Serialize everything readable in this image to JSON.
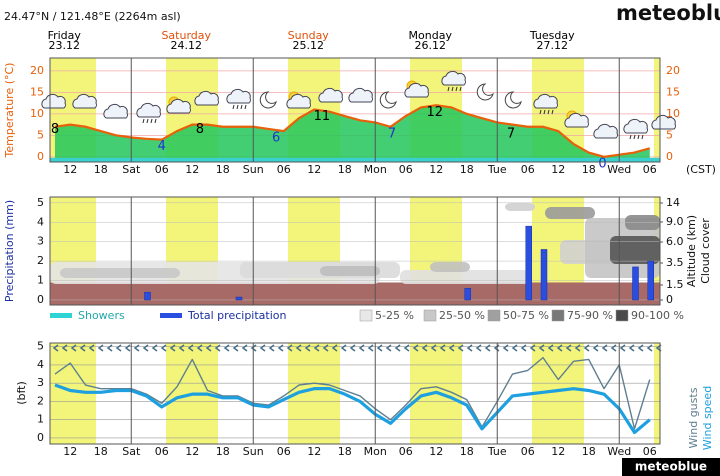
{
  "header": {
    "coords": "24.47°N / 121.48°E (2264m asl)",
    "brand": "meteoblue"
  },
  "footer": {
    "brand": "meteoblue"
  },
  "chart_data": [
    {
      "type": "area",
      "ylabel": "Temperature (°C)",
      "timezone": "(CST)",
      "days": [
        {
          "name": "Friday",
          "date": "23.12",
          "color": "#000000"
        },
        {
          "name": "Saturday",
          "date": "24.12",
          "color": "#e0520a"
        },
        {
          "name": "Sunday",
          "date": "25.12",
          "color": "#e0520a"
        },
        {
          "name": "Monday",
          "date": "26.12",
          "color": "#000000"
        },
        {
          "name": "Tuesday",
          "date": "27.12",
          "color": "#000000"
        }
      ],
      "categories": [
        null,
        "12",
        null,
        "18",
        null,
        "Sat",
        null,
        "06",
        null,
        "12",
        null,
        "18",
        null,
        "Sun",
        null,
        "06",
        null,
        "12",
        null,
        "18",
        null,
        "Mon",
        null,
        "06",
        null,
        "12",
        null,
        "18",
        null,
        "Tue",
        null,
        "06",
        null,
        "12",
        null,
        "18",
        null,
        "Wed",
        null,
        "06"
      ],
      "values": [
        7,
        7.5,
        7,
        6,
        5,
        4.5,
        4.2,
        4,
        6,
        7.5,
        7.5,
        7,
        7,
        7,
        6.5,
        6,
        9,
        11,
        10.5,
        9.5,
        8.5,
        8,
        7,
        9.5,
        11.5,
        12,
        11.5,
        10,
        9,
        8,
        7.5,
        7,
        7,
        6,
        3,
        1,
        0,
        0.5,
        1,
        2
      ],
      "color": "#e8600a",
      "fill": "#22c55a",
      "annotations": [
        8,
        4,
        8,
        6,
        11,
        7,
        12,
        7,
        0
      ],
      "annotation_colors": [
        "#000000",
        "#2233cc",
        "#000000",
        "#2233cc",
        "#000000",
        "#2233cc",
        "#000000",
        "#000000",
        "#2233cc"
      ],
      "ylim": [
        -1.2,
        23
      ],
      "yticks": [
        0,
        5,
        10,
        15,
        20
      ],
      "grid": true
    },
    {
      "type": "bar",
      "ylabel": "Precipitation (mm)",
      "y2label": "Altitude (km)",
      "y3label": "Cloud cover",
      "series": [
        {
          "name": "Showers",
          "color": "#2ed3d3",
          "values": [
            0,
            0,
            0,
            0,
            0,
            0,
            0,
            0,
            0,
            0,
            0,
            0,
            0,
            0,
            0,
            0,
            0,
            0,
            0,
            0,
            0,
            0,
            0,
            0,
            0,
            0,
            0,
            0,
            0,
            0,
            0,
            0,
            0,
            0,
            0,
            0,
            0,
            0,
            0,
            0
          ]
        },
        {
          "name": "Total precipitation",
          "color": "#2a4fe0",
          "values": [
            0,
            0,
            0,
            0,
            0,
            0,
            0.4,
            0,
            0,
            0,
            0,
            0,
            0.15,
            0,
            0,
            0,
            0,
            0,
            0,
            0,
            0,
            0,
            0,
            0,
            0,
            0,
            0,
            0.6,
            0,
            0,
            0,
            3.8,
            2.6,
            0,
            0,
            0,
            0,
            0,
            1.7,
            2.0
          ]
        }
      ],
      "ylim": [
        -0.26,
        5.3
      ],
      "yticks": [
        0,
        1,
        2,
        3,
        4,
        5
      ],
      "y2ticks": [
        14,
        {
          "value": 9,
          "label": "9.0"
        },
        {
          "value": 6,
          "label": "6.0"
        },
        3.5,
        1.5,
        0
      ],
      "cloud_legend": [
        {
          "label": "5-25 %",
          "color": "#e8e8e8"
        },
        {
          "label": "25-50 %",
          "color": "#c8c8c8"
        },
        {
          "label": "50-75 %",
          "color": "#a0a0a0"
        },
        {
          "label": "75-90 %",
          "color": "#787878"
        },
        {
          "label": "90-100 %",
          "color": "#4a4a4a"
        }
      ],
      "grid": true
    },
    {
      "type": "line",
      "ylabel": "(bft)",
      "categories": [
        null,
        "12",
        null,
        "18",
        null,
        "Sat",
        null,
        "06",
        null,
        "12",
        null,
        "18",
        null,
        "Sun",
        null,
        "06",
        null,
        "12",
        null,
        "18",
        null,
        "Mon",
        null,
        "06",
        null,
        "12",
        null,
        "18",
        null,
        "Tue",
        null,
        "06",
        null,
        "12",
        null,
        "18",
        null,
        "Wed",
        null,
        "06"
      ],
      "series": [
        {
          "name": "Wind gusts",
          "color": "#5f7f90",
          "values": [
            3.5,
            4.1,
            2.9,
            2.7,
            2.7,
            2.7,
            2.4,
            1.9,
            2.8,
            4.3,
            2.6,
            2.3,
            2.3,
            1.9,
            1.8,
            2.3,
            2.9,
            3.0,
            2.9,
            2.6,
            2.3,
            1.6,
            1.0,
            1.8,
            2.7,
            2.8,
            2.5,
            2.1,
            0.6,
            2.0,
            3.5,
            3.7,
            4.4,
            3.2,
            4.2,
            4.3,
            2.7,
            4.0,
            0.5,
            3.2
          ]
        },
        {
          "name": "Wind speed",
          "color": "#1ea0e0",
          "values": [
            2.9,
            2.6,
            2.5,
            2.5,
            2.6,
            2.6,
            2.3,
            1.7,
            2.2,
            2.4,
            2.4,
            2.2,
            2.2,
            1.8,
            1.7,
            2.1,
            2.5,
            2.7,
            2.7,
            2.4,
            2.0,
            1.3,
            0.8,
            1.6,
            2.3,
            2.5,
            2.2,
            1.8,
            0.5,
            1.4,
            2.3,
            2.4,
            2.5,
            2.6,
            2.7,
            2.6,
            2.4,
            1.6,
            0.3,
            1.0
          ]
        }
      ],
      "ylim": [
        -0.33,
        5.2
      ],
      "yticks": [
        0,
        1,
        2,
        3,
        4,
        5
      ],
      "grid": true
    }
  ]
}
